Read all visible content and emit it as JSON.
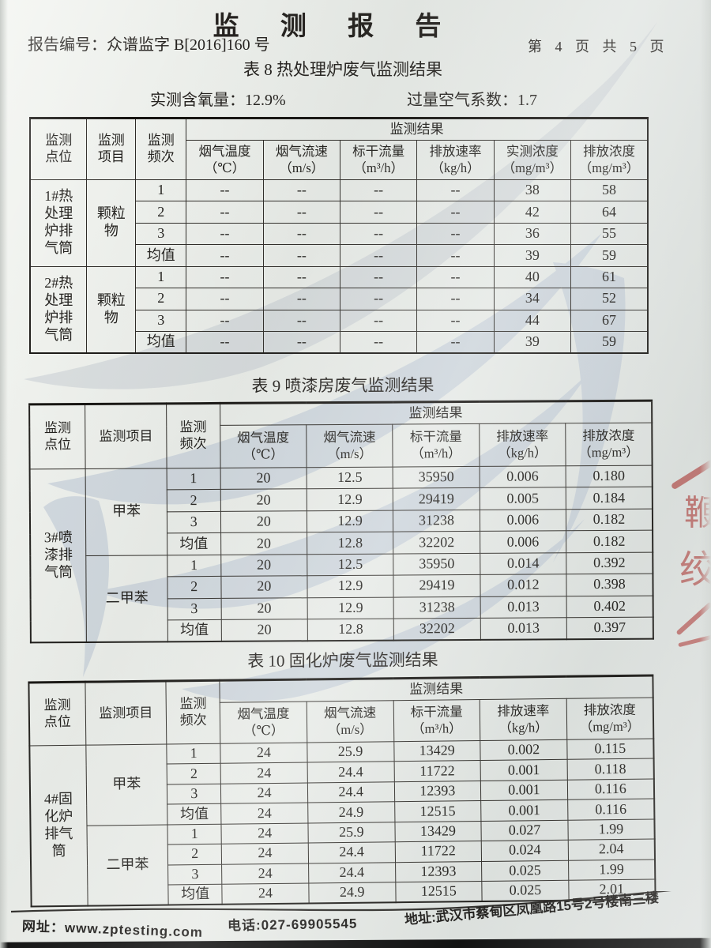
{
  "page": {
    "title": "监 测 报 告",
    "report_no": "报告编号：众谱监字 B[2016]160 号",
    "page_indicator": "第 4 页 共 5 页"
  },
  "params": {
    "oxygen_label": "实测含氧量：",
    "oxygen_value": "12.9%",
    "excess_air_label": "过量空气系数：",
    "excess_air_value": "1.7"
  },
  "table8": {
    "caption": "表 8 热处理炉废气监测结果",
    "header": {
      "point": "监测\n点位",
      "item": "监测\n项目",
      "freq": "监测\n频次",
      "result": "监测结果",
      "cols": [
        [
          "烟气温度",
          "（℃）"
        ],
        [
          "烟气流速",
          "（m/s）"
        ],
        [
          "标干流量",
          "（m³/h）"
        ],
        [
          "排放速率",
          "（kg/h）"
        ],
        [
          "实测浓度",
          "（mg/m³）"
        ],
        [
          "排放浓度",
          "（mg/m³）"
        ]
      ]
    },
    "point_groups": [
      {
        "text": "1#热\n处理\n炉排\n气筒",
        "rows": 4
      },
      {
        "text": "2#热\n处理\n炉排\n气筒",
        "rows": 4
      }
    ],
    "item_groups": [
      {
        "text": "颗粒\n物",
        "rows": 4
      },
      {
        "text": "颗粒\n物",
        "rows": 4
      }
    ],
    "rows": [
      {
        "freq": "1",
        "cells": [
          "--",
          "--",
          "--",
          "--",
          "38",
          "58"
        ]
      },
      {
        "freq": "2",
        "cells": [
          "--",
          "--",
          "--",
          "--",
          "42",
          "64"
        ]
      },
      {
        "freq": "3",
        "cells": [
          "--",
          "--",
          "--",
          "--",
          "36",
          "55"
        ]
      },
      {
        "freq": "均值",
        "cells": [
          "--",
          "--",
          "--",
          "--",
          "39",
          "59"
        ]
      },
      {
        "freq": "1",
        "cells": [
          "--",
          "--",
          "--",
          "--",
          "40",
          "61"
        ]
      },
      {
        "freq": "2",
        "cells": [
          "--",
          "--",
          "--",
          "--",
          "34",
          "52"
        ]
      },
      {
        "freq": "3",
        "cells": [
          "--",
          "--",
          "--",
          "--",
          "44",
          "67"
        ]
      },
      {
        "freq": "均值",
        "cells": [
          "--",
          "--",
          "--",
          "--",
          "39",
          "59"
        ]
      }
    ]
  },
  "table9": {
    "caption": "表 9 喷漆房废气监测结果",
    "header": {
      "point": "监测\n点位",
      "item": "监测项目",
      "freq": "监测\n频次",
      "result": "监测结果",
      "cols": [
        [
          "烟气温度",
          "（℃）"
        ],
        [
          "烟气流速",
          "（m/s）"
        ],
        [
          "标干流量",
          "（m³/h）"
        ],
        [
          "排放速率",
          "（kg/h）"
        ],
        [
          "排放浓度",
          "（mg/m³）"
        ]
      ]
    },
    "point_groups": [
      {
        "text": "3#喷\n漆排\n气筒",
        "rows": 8
      }
    ],
    "item_groups": [
      {
        "text": "甲苯",
        "rows": 4
      },
      {
        "text": "二甲苯",
        "rows": 4
      }
    ],
    "rows": [
      {
        "freq": "1",
        "cells": [
          "20",
          "12.5",
          "35950",
          "0.006",
          "0.180"
        ]
      },
      {
        "freq": "2",
        "cells": [
          "20",
          "12.9",
          "29419",
          "0.005",
          "0.184"
        ]
      },
      {
        "freq": "3",
        "cells": [
          "20",
          "12.9",
          "31238",
          "0.006",
          "0.182"
        ]
      },
      {
        "freq": "均值",
        "cells": [
          "20",
          "12.8",
          "32202",
          "0.006",
          "0.182"
        ]
      },
      {
        "freq": "1",
        "cells": [
          "20",
          "12.5",
          "35950",
          "0.014",
          "0.392"
        ]
      },
      {
        "freq": "2",
        "cells": [
          "20",
          "12.9",
          "29419",
          "0.012",
          "0.398"
        ]
      },
      {
        "freq": "3",
        "cells": [
          "20",
          "12.9",
          "31238",
          "0.013",
          "0.402"
        ]
      },
      {
        "freq": "均值",
        "cells": [
          "20",
          "12.8",
          "32202",
          "0.013",
          "0.397"
        ]
      }
    ]
  },
  "table10": {
    "caption": "表 10 固化炉废气监测结果",
    "header": {
      "point": "监测\n点位",
      "item": "监测项目",
      "freq": "监测\n频次",
      "result": "监测结果",
      "cols": [
        [
          "烟气温度",
          "（℃）"
        ],
        [
          "烟气流速",
          "（m/s）"
        ],
        [
          "标干流量",
          "（m³/h）"
        ],
        [
          "排放速率",
          "（kg/h）"
        ],
        [
          "排放浓度",
          "（mg/m³）"
        ]
      ]
    },
    "point_groups": [
      {
        "text": "4#固\n化炉\n排气\n筒",
        "rows": 8
      }
    ],
    "item_groups": [
      {
        "text": "甲苯",
        "rows": 4
      },
      {
        "text": "二甲苯",
        "rows": 4
      }
    ],
    "rows": [
      {
        "freq": "1",
        "cells": [
          "24",
          "25.9",
          "13429",
          "0.002",
          "0.115"
        ]
      },
      {
        "freq": "2",
        "cells": [
          "24",
          "24.4",
          "11722",
          "0.001",
          "0.118"
        ]
      },
      {
        "freq": "3",
        "cells": [
          "24",
          "24.4",
          "12393",
          "0.001",
          "0.116"
        ]
      },
      {
        "freq": "均值",
        "cells": [
          "24",
          "24.9",
          "12515",
          "0.001",
          "0.116"
        ]
      },
      {
        "freq": "1",
        "cells": [
          "24",
          "25.9",
          "13429",
          "0.027",
          "1.99"
        ]
      },
      {
        "freq": "2",
        "cells": [
          "24",
          "24.4",
          "11722",
          "0.024",
          "2.04"
        ]
      },
      {
        "freq": "3",
        "cells": [
          "24",
          "24.4",
          "12393",
          "0.025",
          "1.99"
        ]
      },
      {
        "freq": "均值",
        "cells": [
          "24",
          "24.9",
          "12515",
          "0.025",
          "2.01"
        ]
      }
    ]
  },
  "footer": {
    "website": "网址：www.zptesting.com",
    "phone": "电话:027-69905545",
    "address": "地址:武汉市蔡甸区凤凰路15号2号楼南三楼"
  },
  "stamp": {
    "glyphs": [
      "鞭",
      "绞"
    ]
  },
  "colors": {
    "watermark": "#b6c2d3",
    "stamp_red": "#b5524e",
    "paper": "#eceeea",
    "ink": "#24211e"
  }
}
